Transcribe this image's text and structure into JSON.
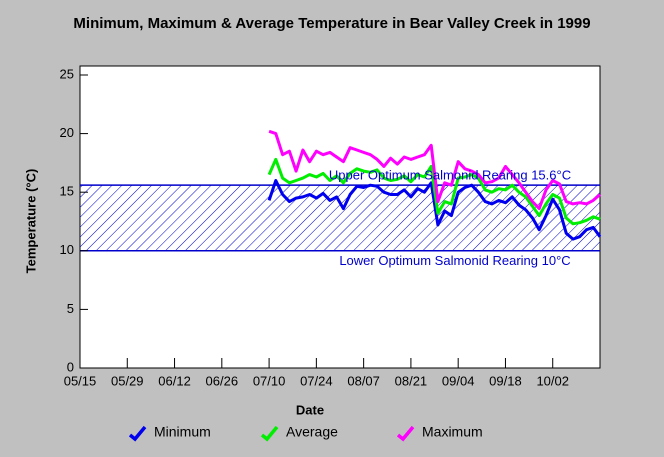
{
  "chart_data": {
    "type": "line",
    "title": "Minimum, Maximum & Average Temperature in Bear Valley Creek in 1999",
    "xlabel": "Date",
    "ylabel": "Temperature (°C)",
    "x": [
      "07/10",
      "07/12",
      "07/14",
      "07/16",
      "07/18",
      "07/20",
      "07/22",
      "07/24",
      "07/26",
      "07/28",
      "07/30",
      "08/01",
      "08/03",
      "08/05",
      "08/07",
      "08/09",
      "08/11",
      "08/13",
      "08/15",
      "08/17",
      "08/19",
      "08/21",
      "08/23",
      "08/25",
      "08/27",
      "08/29",
      "08/31",
      "09/02",
      "09/04",
      "09/06",
      "09/08",
      "09/10",
      "09/12",
      "09/14",
      "09/16",
      "09/18",
      "09/20",
      "09/22",
      "09/24",
      "09/26",
      "09/28",
      "09/30",
      "10/02",
      "10/04",
      "10/06",
      "10/08",
      "10/10",
      "10/12",
      "10/14",
      "10/16"
    ],
    "xlim": [
      "05/15",
      "10/16"
    ],
    "xticks": [
      "05/15",
      "05/29",
      "06/12",
      "06/26",
      "07/10",
      "07/24",
      "08/07",
      "08/21",
      "09/04",
      "09/18",
      "10/02"
    ],
    "ylim": [
      0,
      25
    ],
    "yticks": [
      0,
      5,
      10,
      15,
      20,
      25
    ],
    "series": [
      {
        "name": "Minimum",
        "color": "#0000ee",
        "values": [
          14.3,
          16.0,
          14.8,
          14.2,
          14.5,
          14.6,
          14.8,
          14.5,
          14.9,
          14.3,
          14.6,
          13.6,
          14.8,
          15.5,
          15.4,
          15.6,
          15.5,
          15.0,
          14.8,
          14.8,
          15.2,
          14.6,
          15.3,
          15.0,
          15.8,
          12.2,
          13.4,
          13.0,
          15.0,
          15.4,
          15.6,
          15.0,
          14.2,
          14.0,
          14.3,
          14.1,
          14.6,
          13.9,
          13.5,
          12.8,
          11.8,
          13.0,
          14.4,
          13.5,
          11.5,
          11.0,
          11.2,
          11.8,
          12.0,
          11.2
        ]
      },
      {
        "name": "Average",
        "color": "#00ee00",
        "values": [
          16.5,
          17.8,
          16.2,
          15.8,
          16.0,
          16.2,
          16.5,
          16.3,
          16.6,
          16.0,
          16.4,
          15.8,
          16.6,
          17.0,
          16.8,
          16.7,
          16.9,
          16.2,
          16.0,
          16.1,
          16.4,
          15.9,
          16.5,
          16.3,
          17.2,
          13.2,
          14.2,
          14.0,
          16.2,
          16.3,
          16.5,
          16.2,
          15.2,
          15.0,
          15.3,
          15.2,
          15.6,
          15.0,
          14.6,
          13.8,
          13.0,
          14.0,
          14.8,
          14.5,
          12.8,
          12.3,
          12.4,
          12.6,
          12.9,
          12.7
        ]
      },
      {
        "name": "Maximum",
        "color": "#ff00ff",
        "values": [
          20.2,
          20.0,
          18.2,
          18.5,
          16.8,
          18.6,
          17.6,
          18.5,
          18.2,
          18.4,
          18.0,
          17.6,
          18.8,
          18.6,
          18.4,
          18.2,
          17.8,
          17.2,
          17.9,
          17.4,
          18.0,
          17.8,
          18.0,
          18.2,
          19.0,
          14.2,
          15.8,
          15.6,
          17.6,
          17.0,
          16.8,
          16.5,
          15.8,
          15.9,
          16.2,
          17.2,
          16.5,
          15.8,
          15.0,
          14.2,
          13.6,
          15.2,
          16.0,
          15.7,
          14.2,
          14.0,
          14.1,
          14.0,
          14.3,
          14.8
        ]
      }
    ],
    "optimum_range": [
      10,
      15.6
    ],
    "annotations": [
      "Lower Optimum Salmonid Rearing 10°C",
      "Upper Optimum Salmonid Rearing 15.6°C"
    ],
    "band_color": "#0000cc"
  }
}
